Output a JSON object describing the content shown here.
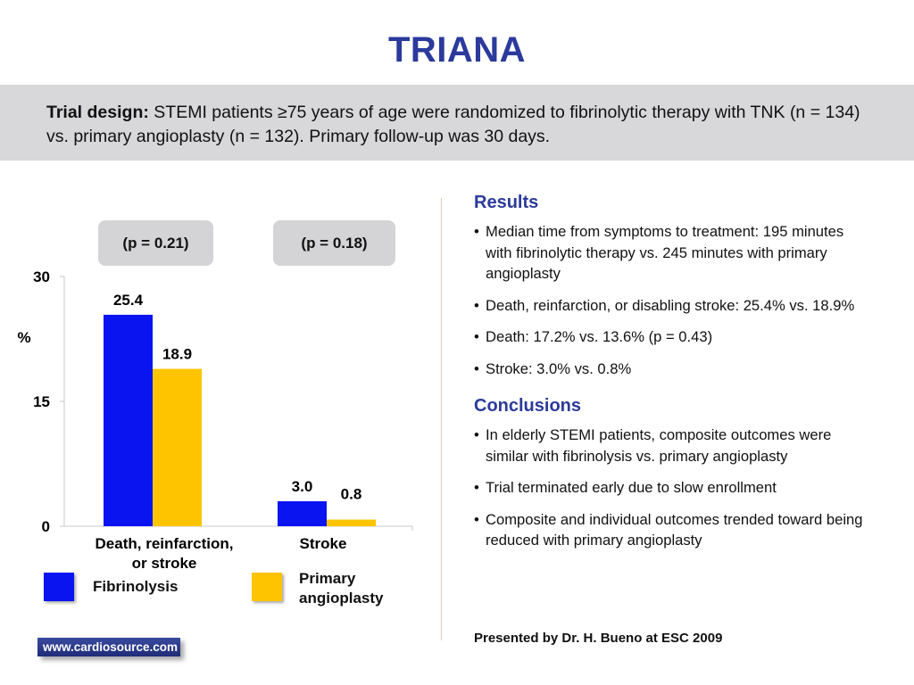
{
  "slide": {
    "title": "TRIANA",
    "design_label": "Trial design:",
    "design_text": " STEMI patients ≥75 years of age were randomized to fibrinolytic therapy with TNK (n = 134) vs. primary angioplasty (n = 132). Primary follow-up was 30 days."
  },
  "pvalues": [
    "(p = 0.21)",
    "(p = 0.18)"
  ],
  "chart_data": {
    "type": "bar",
    "categories": [
      "Death, reinfarction, or stroke",
      "Stroke"
    ],
    "category_lines": [
      [
        "Death, reinfarction,",
        "or stroke"
      ],
      [
        "Stroke"
      ]
    ],
    "series": [
      {
        "name": "Fibrinolysis",
        "values": [
          25.4,
          3.0
        ],
        "labels": [
          "25.4",
          "3.0"
        ],
        "color": "#0a14f0"
      },
      {
        "name": "Primary angioplasty",
        "values": [
          18.9,
          0.8
        ],
        "labels": [
          "18.9",
          "0.8"
        ],
        "color": "#ffc400"
      }
    ],
    "ylabel": "%",
    "ylim": [
      0,
      30
    ],
    "yticks": [
      "0",
      "15",
      "30"
    ],
    "grid": false
  },
  "legend": {
    "fibrinolysis": "Fibrinolysis",
    "angioplasty_line1": "Primary",
    "angioplasty_line2": "angioplasty"
  },
  "results": {
    "heading": "Results",
    "bullets": [
      "Median time from symptoms to treatment: 195 minutes with fibrinolytic therapy vs. 245 minutes with primary angioplasty",
      "Death, reinfarction, or disabling stroke: 25.4% vs. 18.9%",
      "Death: 17.2% vs. 13.6% (p = 0.43)",
      "Stroke: 3.0% vs. 0.8%"
    ]
  },
  "conclusions": {
    "heading": "Conclusions",
    "bullets": [
      "In elderly STEMI patients, composite outcomes were similar with fibrinolysis vs. primary angioplasty",
      "Trial terminated early due to slow enrollment",
      "Composite and individual outcomes trended toward being reduced with primary angioplasty"
    ]
  },
  "footer": {
    "presenter": "Presented by Dr. H. Bueno at ESC 2009",
    "source": "www.cardiosource.com"
  },
  "colors": {
    "title": "#2b3a9b",
    "band": "#d8d8da",
    "fibrinolysis": "#0a14f0",
    "angioplasty": "#ffc400"
  }
}
